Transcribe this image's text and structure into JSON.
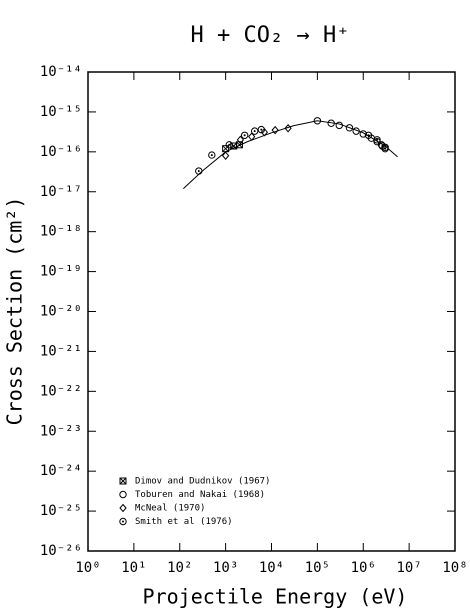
{
  "chart_data": {
    "type": "scatter",
    "title": "H + CO₂ → H⁺",
    "x_label": "Projectile Energy (eV)",
    "y_label": "Cross Section (cm²)",
    "x_log": true,
    "y_log": true,
    "xlim": [
      1,
      100000000
    ],
    "ylim": [
      1e-26,
      1e-14
    ],
    "xticks": [
      {
        "value": 1,
        "label": "10⁰"
      },
      {
        "value": 10,
        "label": "10¹"
      },
      {
        "value": 100,
        "label": "10²"
      },
      {
        "value": 1000,
        "label": "10³"
      },
      {
        "value": 10000,
        "label": "10⁴"
      },
      {
        "value": 100000,
        "label": "10⁵"
      },
      {
        "value": 1000000,
        "label": "10⁶"
      },
      {
        "value": 10000000,
        "label": "10⁷"
      },
      {
        "value": 100000000,
        "label": "10⁸"
      }
    ],
    "yticks": [
      {
        "value": 1e-26,
        "label": "10⁻²⁶"
      },
      {
        "value": 1e-25,
        "label": "10⁻²⁵"
      },
      {
        "value": 1e-24,
        "label": "10⁻²⁴"
      },
      {
        "value": 1e-23,
        "label": "10⁻²³"
      },
      {
        "value": 1e-22,
        "label": "10⁻²²"
      },
      {
        "value": 1e-21,
        "label": "10⁻²¹"
      },
      {
        "value": 1e-20,
        "label": "10⁻²⁰"
      },
      {
        "value": 1e-19,
        "label": "10⁻¹⁹"
      },
      {
        "value": 1e-18,
        "label": "10⁻¹⁸"
      },
      {
        "value": 1e-17,
        "label": "10⁻¹⁷"
      },
      {
        "value": 1e-16,
        "label": "10⁻¹⁶"
      },
      {
        "value": 1e-15,
        "label": "10⁻¹⁵"
      },
      {
        "value": 1e-14,
        "label": "10⁻¹⁴"
      }
    ],
    "legend": "lower left",
    "color": "#000000",
    "series": [
      {
        "name": "Dimov and Dudnikov (1967)",
        "marker": "boxed-x",
        "x": [
          1000,
          1500,
          2000
        ],
        "values": [
          1.2e-16,
          1.4e-16,
          1.5e-16
        ]
      },
      {
        "name": "Toburen and Nakai (1968)",
        "marker": "circle",
        "x": [
          100000,
          200000,
          300000,
          500000,
          700000,
          1000000,
          1500000,
          2000000,
          2500000,
          3000000
        ],
        "values": [
          6e-16,
          5.2e-16,
          4.6e-16,
          4e-16,
          3.3e-16,
          2.8e-16,
          2.2e-16,
          1.8e-16,
          1.5e-16,
          1.3e-16
        ]
      },
      {
        "name": "McNeal (1970)",
        "marker": "diamond",
        "x": [
          1000,
          2100,
          3700,
          7000,
          12000,
          23000
        ],
        "values": [
          8e-17,
          2e-16,
          2.4e-16,
          3.1e-16,
          3.5e-16,
          3.9e-16
        ]
      },
      {
        "name": "Smith et al (1976)",
        "marker": "dotted-circle",
        "x": [
          260,
          500,
          1200,
          2600,
          4300,
          6000,
          1300000,
          2000000,
          2600000,
          3000000
        ],
        "values": [
          3.3e-17,
          8.3e-17,
          1.5e-16,
          2.6e-16,
          3.3e-16,
          3.6e-16,
          2.6e-16,
          2e-16,
          1.4e-16,
          1.2e-16
        ]
      },
      {
        "type": "line",
        "x": [
          120,
          300,
          1000,
          3000,
          10000,
          30000,
          100000,
          300000,
          1000000,
          3000000,
          5600000
        ],
        "values": [
          1.2e-17,
          3.2e-17,
          1e-16,
          1.8e-16,
          3e-16,
          4.5e-16,
          6e-16,
          5e-16,
          3e-16,
          1.4e-16,
          7.5e-17
        ]
      }
    ]
  }
}
